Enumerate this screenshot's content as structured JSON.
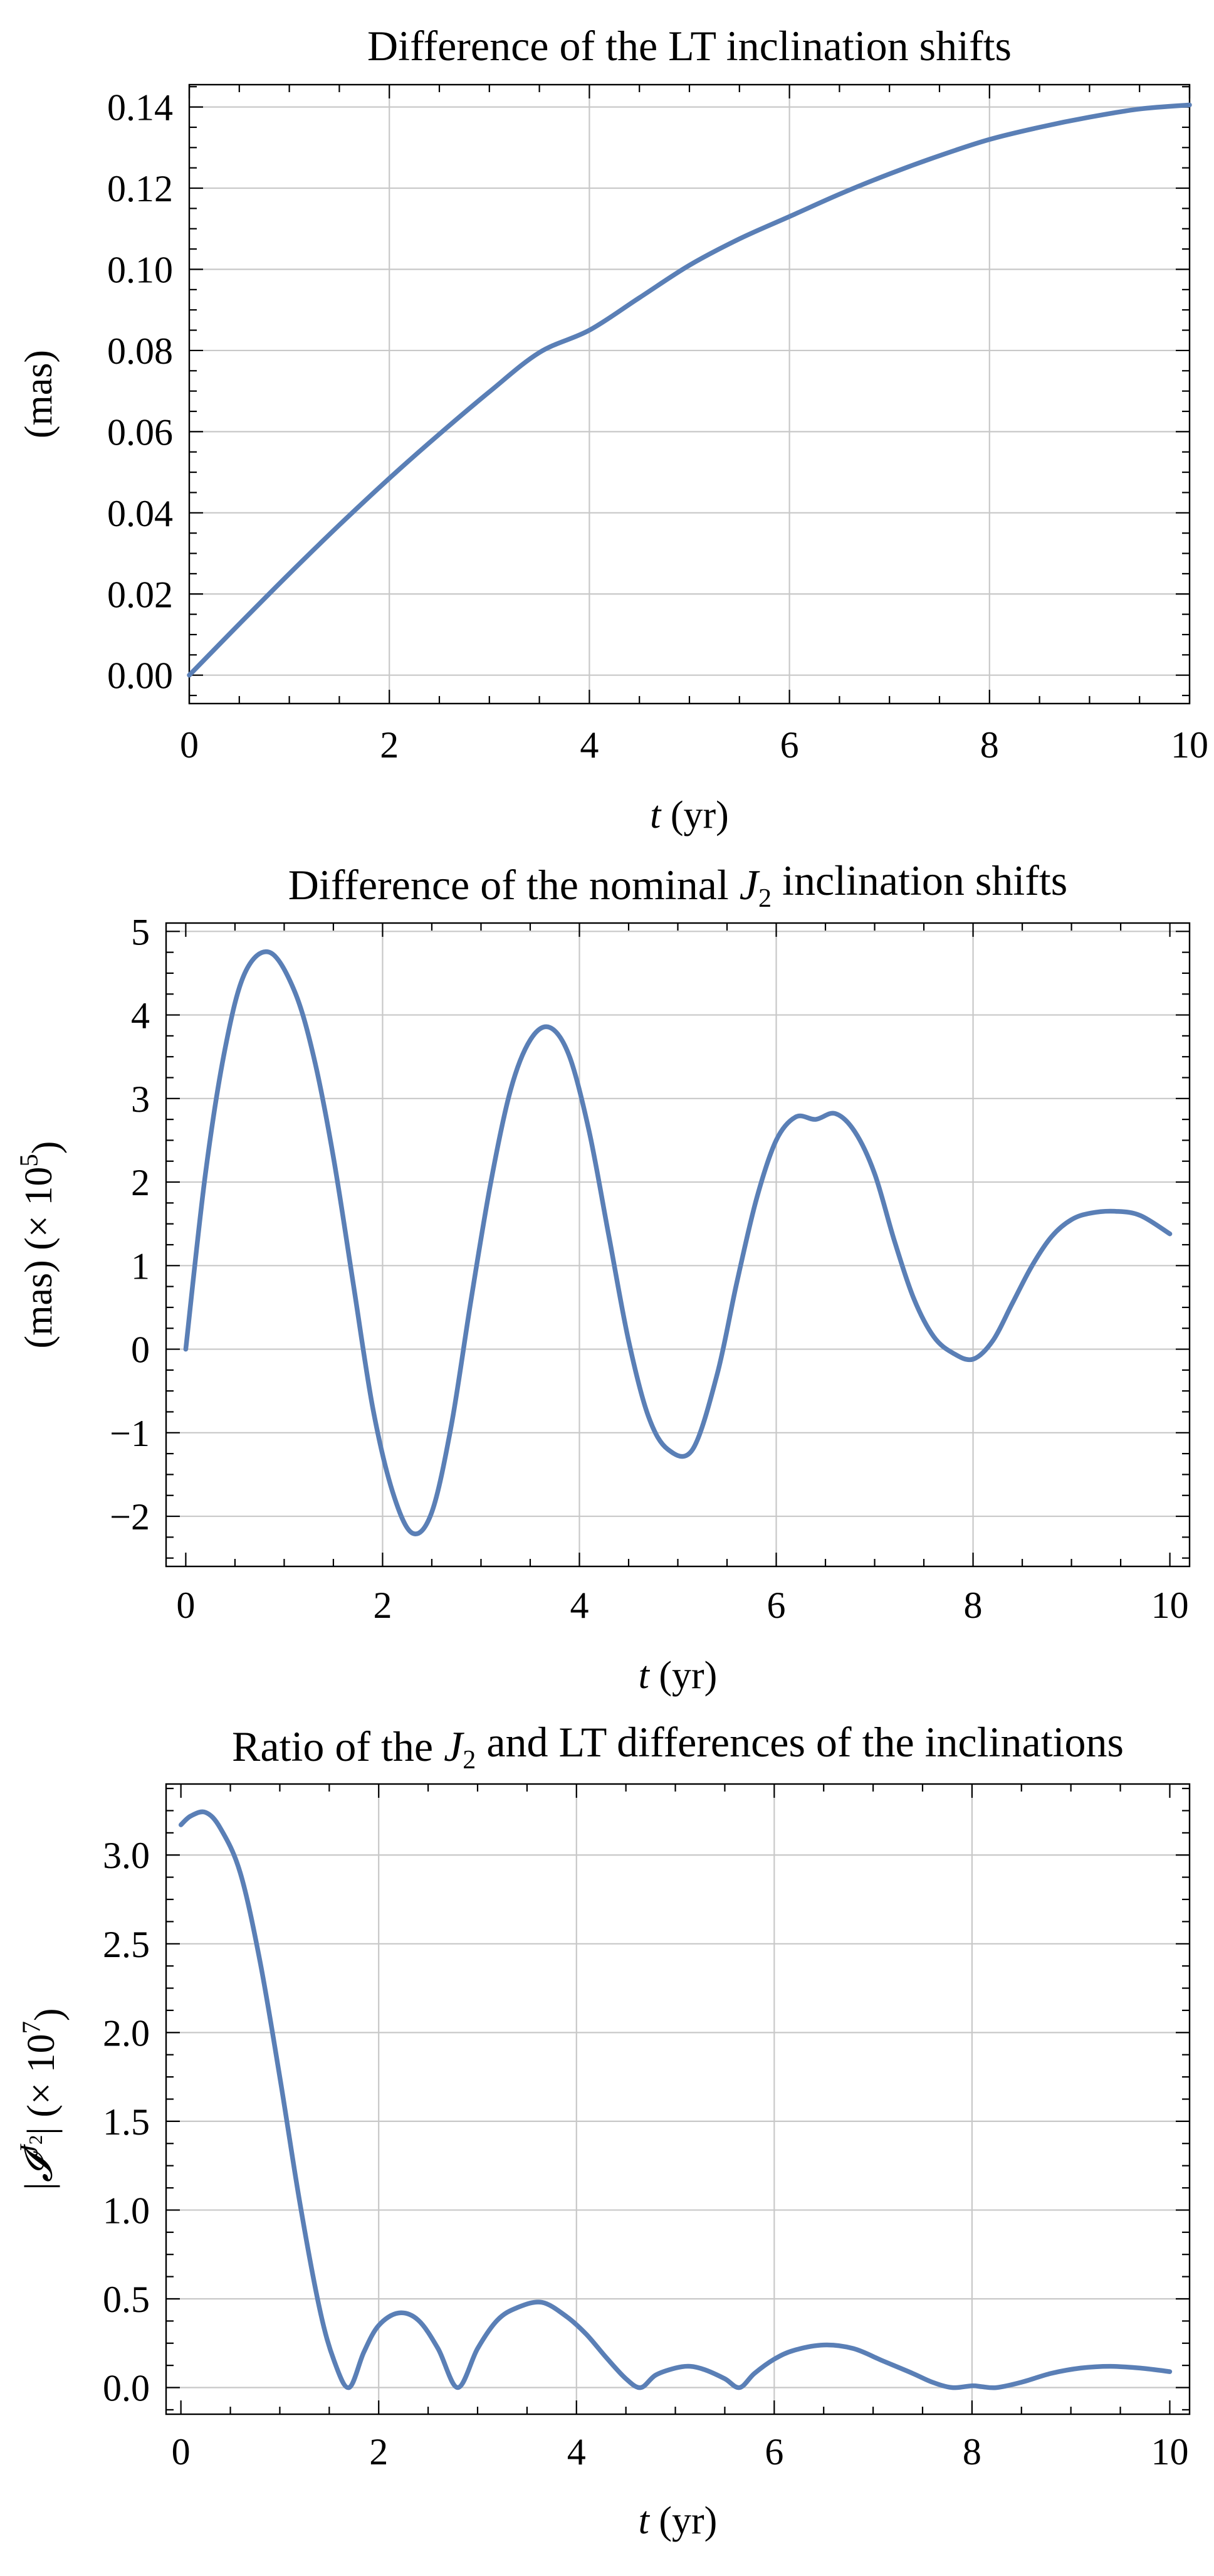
{
  "colors": {
    "line": "#5a7fb6",
    "grid": "#c8c8c8",
    "frame": "#000000"
  },
  "chart_data": [
    {
      "type": "line",
      "title": "Difference of the LT inclination shifts",
      "title_parts": [
        {
          "t": "Difference of the LT inclination shifts"
        }
      ],
      "xlabel_parts": [
        {
          "t": "t",
          "i": true
        },
        {
          "t": " (yr)"
        }
      ],
      "ylabel_parts": [
        {
          "t": "(mas)"
        }
      ],
      "xlim": [
        0,
        10
      ],
      "ylim": [
        -0.007,
        0.1455
      ],
      "xticks": [
        0,
        2,
        4,
        6,
        8,
        10
      ],
      "xtick_labels": [
        "0",
        "2",
        "4",
        "6",
        "8",
        "10"
      ],
      "yticks": [
        0,
        0.02,
        0.04,
        0.06,
        0.08,
        0.1,
        0.12,
        0.14
      ],
      "ytick_labels": [
        "0.00",
        "0.02",
        "0.04",
        "0.06",
        "0.08",
        "0.10",
        "0.12",
        "0.14"
      ],
      "xgrid": [
        2,
        4,
        6,
        8
      ],
      "ygrid": [
        0,
        0.02,
        0.04,
        0.06,
        0.08,
        0.1,
        0.12,
        0.14
      ],
      "series": [
        {
          "name": "LT difference",
          "x": [
            0,
            0.5,
            1,
            1.5,
            2,
            2.5,
            3,
            3.5,
            4,
            4.5,
            5,
            5.5,
            6,
            6.5,
            7,
            7.5,
            8,
            8.5,
            9,
            9.5,
            10
          ],
          "y": [
            0,
            0.0126,
            0.025,
            0.037,
            0.0485,
            0.0594,
            0.0698,
            0.0795,
            0.085,
            0.093,
            0.101,
            0.1075,
            0.113,
            0.1185,
            0.1235,
            0.128,
            0.132,
            0.135,
            0.1375,
            0.1395,
            0.1405
          ]
        }
      ]
    },
    {
      "type": "line",
      "title": "Difference of the nominal J2 inclination shifts",
      "title_parts": [
        {
          "t": "Difference of the nominal "
        },
        {
          "t": "J",
          "i": true
        },
        {
          "t": "2",
          "sub": true
        },
        {
          "t": " inclination shifts"
        }
      ],
      "xlabel_parts": [
        {
          "t": "t",
          "i": true
        },
        {
          "t": " (yr)"
        }
      ],
      "ylabel_parts": [
        {
          "t": "(mas) (× 10"
        },
        {
          "t": "5",
          "sup": true
        },
        {
          "t": ")"
        }
      ],
      "xlim": [
        -0.2,
        10.2
      ],
      "ylim": [
        -2.6,
        5.1
      ],
      "xticks": [
        0,
        2,
        4,
        6,
        8,
        10
      ],
      "xtick_labels": [
        "0",
        "2",
        "4",
        "6",
        "8",
        "10"
      ],
      "yticks": [
        -2,
        -1,
        0,
        1,
        2,
        3,
        4,
        5
      ],
      "ytick_labels": [
        "−2",
        "−1",
        "0",
        "1",
        "2",
        "3",
        "4",
        "5"
      ],
      "xgrid": [
        2,
        4,
        6,
        8
      ],
      "ygrid": [
        -2,
        -1,
        0,
        1,
        2,
        3,
        4,
        5
      ],
      "series": [
        {
          "name": "J2 difference",
          "x": [
            0,
            0.2,
            0.4,
            0.6,
            0.85,
            1.1,
            1.3,
            1.5,
            1.7,
            1.9,
            2.1,
            2.3,
            2.5,
            2.7,
            2.9,
            3.1,
            3.3,
            3.5,
            3.7,
            3.9,
            4.1,
            4.3,
            4.5,
            4.7,
            4.9,
            5.15,
            5.4,
            5.6,
            5.8,
            6.0,
            6.2,
            6.4,
            6.6,
            6.8,
            7.0,
            7.2,
            7.4,
            7.6,
            7.8,
            8.0,
            8.2,
            8.4,
            8.6,
            8.8,
            9.0,
            9.2,
            9.45,
            9.7,
            10.0
          ],
          "y": [
            0,
            2.1,
            3.6,
            4.5,
            4.75,
            4.3,
            3.5,
            2.3,
            0.8,
            -0.7,
            -1.7,
            -2.2,
            -1.95,
            -0.9,
            0.6,
            2.0,
            3.1,
            3.7,
            3.85,
            3.5,
            2.6,
            1.35,
            0.1,
            -0.8,
            -1.2,
            -1.2,
            -0.3,
            0.8,
            1.8,
            2.5,
            2.78,
            2.75,
            2.82,
            2.6,
            2.1,
            1.3,
            0.6,
            0.15,
            -0.05,
            -0.12,
            0.1,
            0.55,
            1.0,
            1.35,
            1.55,
            1.63,
            1.65,
            1.6,
            1.38
          ]
        }
      ]
    },
    {
      "type": "line",
      "title": "Ratio of the J2 and LT differences of the inclinations",
      "title_parts": [
        {
          "t": "Ratio of the "
        },
        {
          "t": "J",
          "i": true
        },
        {
          "t": "2",
          "sub": true
        },
        {
          "t": " and LT differences of the inclinations"
        }
      ],
      "xlabel_parts": [
        {
          "t": "t",
          "i": true
        },
        {
          "t": " (yr)"
        }
      ],
      "ylabel_parts": [
        {
          "t": "|"
        },
        {
          "t": "𝓘",
          "i": true
        },
        {
          "t": "J",
          "i": true,
          "sup": true
        },
        {
          "t": "2",
          "supsub": true
        },
        {
          "t": "| (× 10"
        },
        {
          "t": "7",
          "sup": true
        },
        {
          "t": ")"
        }
      ],
      "xlim": [
        -0.15,
        10.2
      ],
      "ylim": [
        -0.15,
        3.4
      ],
      "xticks": [
        0,
        2,
        4,
        6,
        8,
        10
      ],
      "xtick_labels": [
        "0",
        "2",
        "4",
        "6",
        "8",
        "10"
      ],
      "yticks": [
        0,
        0.5,
        1.0,
        1.5,
        2.0,
        2.5,
        3.0
      ],
      "ytick_labels": [
        "0.0",
        "0.5",
        "1.0",
        "1.5",
        "2.0",
        "2.5",
        "3.0"
      ],
      "xgrid": [
        2,
        4,
        6,
        8
      ],
      "ygrid": [
        0,
        0.5,
        1.0,
        1.5,
        2.0,
        2.5,
        3.0
      ],
      "series": [
        {
          "name": "Ratio",
          "x": [
            0,
            0.1,
            0.25,
            0.4,
            0.6,
            0.8,
            1.0,
            1.2,
            1.4,
            1.55,
            1.7,
            1.85,
            2.0,
            2.2,
            2.4,
            2.6,
            2.8,
            3.0,
            3.2,
            3.4,
            3.65,
            3.9,
            4.1,
            4.3,
            4.5,
            4.65,
            4.8,
            5.0,
            5.15,
            5.3,
            5.5,
            5.65,
            5.8,
            6.0,
            6.2,
            6.5,
            6.8,
            7.1,
            7.4,
            7.6,
            7.8,
            8.0,
            8.1,
            8.25,
            8.5,
            8.8,
            9.1,
            9.4,
            9.7,
            10.0
          ],
          "y": [
            3.17,
            3.22,
            3.24,
            3.15,
            2.9,
            2.4,
            1.75,
            1.05,
            0.45,
            0.15,
            0.0,
            0.2,
            0.35,
            0.42,
            0.38,
            0.22,
            0.0,
            0.22,
            0.38,
            0.45,
            0.48,
            0.4,
            0.3,
            0.17,
            0.05,
            0.0,
            0.07,
            0.11,
            0.12,
            0.1,
            0.05,
            0.0,
            0.08,
            0.16,
            0.21,
            0.24,
            0.22,
            0.15,
            0.08,
            0.03,
            0.0,
            0.01,
            0.005,
            0.0,
            0.03,
            0.08,
            0.11,
            0.12,
            0.11,
            0.09
          ]
        }
      ]
    }
  ]
}
